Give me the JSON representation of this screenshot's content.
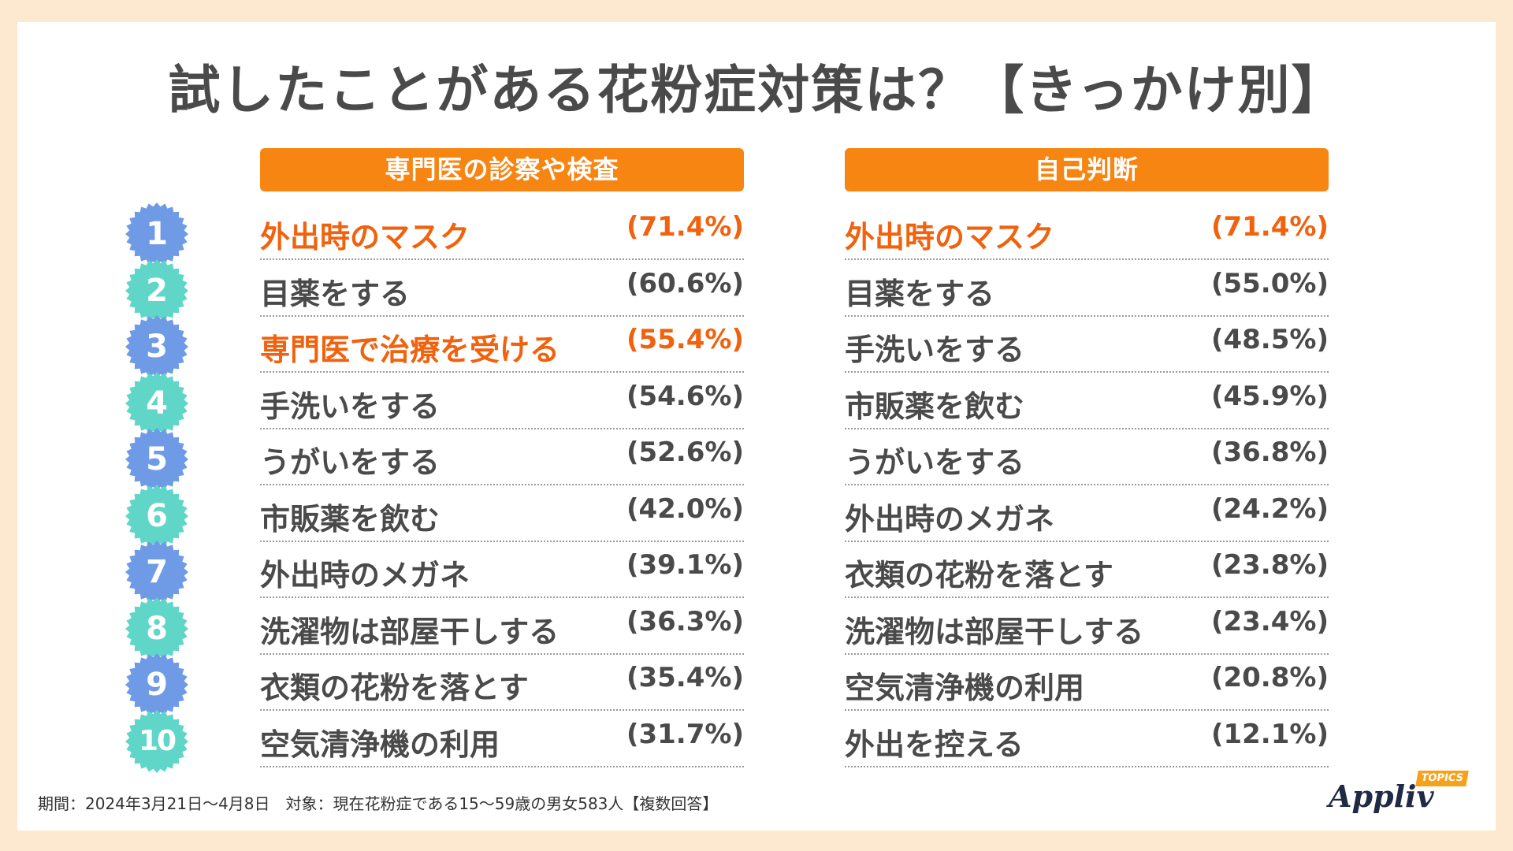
{
  "title": "試したことがある花粉症対策は？【きっかけ別】",
  "colors": {
    "header_bg": "#f68511",
    "highlight_text": "#f0620e",
    "badge_blue": "#6f9be6",
    "badge_teal": "#5fd6c8",
    "page_bg": "#fde9cf"
  },
  "ranks": [
    "1",
    "2",
    "3",
    "4",
    "5",
    "6",
    "7",
    "8",
    "9",
    "10"
  ],
  "chart_data": [
    {
      "type": "table",
      "title": "専門医の診察や検査",
      "rows": [
        {
          "label": "外出時のマスク",
          "value": "(71.4%)",
          "highlight": true
        },
        {
          "label": "目薬をする",
          "value": "(60.6%)",
          "highlight": false
        },
        {
          "label": "専門医で治療を受ける",
          "value": "(55.4%)",
          "highlight": true
        },
        {
          "label": "手洗いをする",
          "value": "(54.6%)",
          "highlight": false
        },
        {
          "label": "うがいをする",
          "value": "(52.6%)",
          "highlight": false
        },
        {
          "label": "市販薬を飲む",
          "value": "(42.0%)",
          "highlight": false
        },
        {
          "label": "外出時のメガネ",
          "value": "(39.1%)",
          "highlight": false
        },
        {
          "label": "洗濯物は部屋干しする",
          "value": "(36.3%)",
          "highlight": false
        },
        {
          "label": "衣類の花粉を落とす",
          "value": "(35.4%)",
          "highlight": false
        },
        {
          "label": "空気清浄機の利用",
          "value": "(31.7%)",
          "highlight": false
        }
      ]
    },
    {
      "type": "table",
      "title": "自己判断",
      "rows": [
        {
          "label": "外出時のマスク",
          "value": "(71.4%)",
          "highlight": true
        },
        {
          "label": "目薬をする",
          "value": "(55.0%)",
          "highlight": false
        },
        {
          "label": "手洗いをする",
          "value": "(48.5%)",
          "highlight": false
        },
        {
          "label": "市販薬を飲む",
          "value": "(45.9%)",
          "highlight": false
        },
        {
          "label": "うがいをする",
          "value": "(36.8%)",
          "highlight": false
        },
        {
          "label": "外出時のメガネ",
          "value": "(24.2%)",
          "highlight": false
        },
        {
          "label": "衣類の花粉を落とす",
          "value": "(23.8%)",
          "highlight": false
        },
        {
          "label": "洗濯物は部屋干しする",
          "value": "(23.4%)",
          "highlight": false
        },
        {
          "label": "空気清浄機の利用",
          "value": "(20.8%)",
          "highlight": false
        },
        {
          "label": "外出を控える",
          "value": "(12.1%)",
          "highlight": false
        }
      ]
    }
  ],
  "footer": "期間：2024年3月21日～4月8日　対象：現在花粉症である15～59歳の男女583人【複数回答】",
  "logo": {
    "word": "Appliv",
    "tag": "TOPICS"
  }
}
